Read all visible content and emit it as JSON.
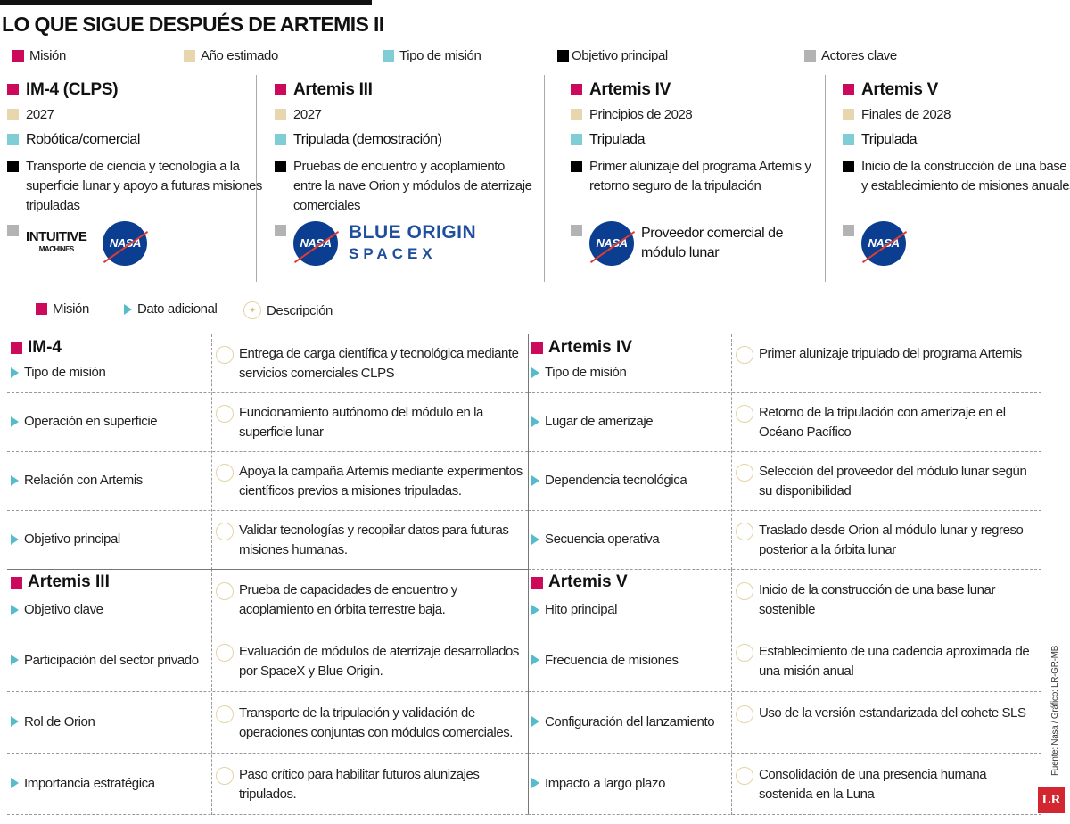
{
  "title": "LO QUE SIGUE DESPUÉS DE ARTEMIS II",
  "colors": {
    "mision": "#cc0a5c",
    "anio": "#e8d7ae",
    "tipo": "#7fcdd5",
    "objetivo": "#000000",
    "actores": "#b3b3b3",
    "triangle": "#56bccc"
  },
  "legend": [
    "Misión",
    "Año estimado",
    "Tipo de misión",
    "Objetivo principal",
    "Actores clave"
  ],
  "cards": [
    {
      "mission": "IM-4 (CLPS)",
      "year": "2027",
      "type": "Robótica/comercial",
      "objective": "Transporte de ciencia y tecnología a la superficie lunar y apoyo a futuras misiones tripuladas",
      "actors": [
        "Intuitive Machines",
        "NASA"
      ],
      "logo_im": "INTUITIVE",
      "logo_im_sub": "MACHINES",
      "logo_nasa": "NASA"
    },
    {
      "mission": "Artemis III",
      "year": "2027",
      "type": "Tripulada (demostración)",
      "objective": "Pruebas de encuentro y acoplamiento entre la nave Orion y módulos de aterrizaje comerciales",
      "logo_nasa": "NASA",
      "logo_bo": "BLUE ORIGIN",
      "logo_sx": "SPACEX"
    },
    {
      "mission": "Artemis IV",
      "year": "Principios de 2028",
      "type": "Tripulada",
      "objective": "Primer alunizaje del programa Artemis y retorno seguro de la tripulación",
      "logo_nasa": "NASA",
      "actor_text": "Proveedor comercial de módulo lunar"
    },
    {
      "mission": "Artemis V",
      "year": "Finales de 2028",
      "type": "Tripulada",
      "objective": "Inicio de la construcción de una base lunar y establecimiento de misiones anuales",
      "logo_nasa": "NASA"
    }
  ],
  "legend2": [
    "Misión",
    "Dato adicional",
    "Descripción"
  ],
  "details": [
    {
      "mission": "IM-4",
      "rows": [
        {
          "label": "Tipo de misión",
          "desc": "Entrega de carga científica y tecnológica mediante servicios comerciales CLPS"
        },
        {
          "label": "Operación en superficie",
          "desc": "Funcionamiento autónomo del módulo en la superficie lunar"
        },
        {
          "label": "Relación con Artemis",
          "desc": "Apoya la campaña Artemis mediante experimentos científicos previos a misiones tripuladas."
        },
        {
          "label": "Objetivo principal",
          "desc": "Validar tecnologías y recopilar datos para futuras misiones humanas."
        }
      ]
    },
    {
      "mission": "Artemis IV",
      "rows": [
        {
          "label": "Tipo de misión",
          "desc": "Primer alunizaje tripulado del programa Artemis"
        },
        {
          "label": "Lugar de amerizaje",
          "desc": "Retorno de la tripulación con amerizaje en el Océano Pacífico"
        },
        {
          "label": "Dependencia tecnológica",
          "desc": "Selección del proveedor del módulo lunar según su disponibilidad"
        },
        {
          "label": "Secuencia operativa",
          "desc": "Traslado desde Orion al módulo lunar y regreso posterior a la órbita lunar"
        }
      ]
    },
    {
      "mission": "Artemis III",
      "rows": [
        {
          "label": "Objetivo clave",
          "desc": "Prueba de capacidades de encuentro y acoplamiento en órbita terrestre baja."
        },
        {
          "label": "Participación del sector privado",
          "desc": "Evaluación de módulos de aterrizaje desarrollados por SpaceX y Blue Origin."
        },
        {
          "label": "Rol de Orion",
          "desc": "Transporte de la tripulación y validación de operaciones conjuntas con módulos comerciales."
        },
        {
          "label": "Importancia estratégica",
          "desc": "Paso crítico para habilitar futuros alunizajes tripulados."
        }
      ]
    },
    {
      "mission": "Artemis V",
      "rows": [
        {
          "label": "Hito principal",
          "desc": "Inicio de la construcción de una base lunar sostenible"
        },
        {
          "label": "Frecuencia de misiones",
          "desc": "Establecimiento de una cadencia aproximada de una misión anual"
        },
        {
          "label": "Configuración del lanzamiento",
          "desc": "Uso de la versión estandarizada del cohete SLS"
        },
        {
          "label": "Impacto a largo plazo",
          "desc": "Consolidación de una presencia humana sostenida en la Luna"
        }
      ]
    }
  ],
  "source": "Fuente: Nasa / Gráfico: LR-GR-MB",
  "brand": "LR"
}
